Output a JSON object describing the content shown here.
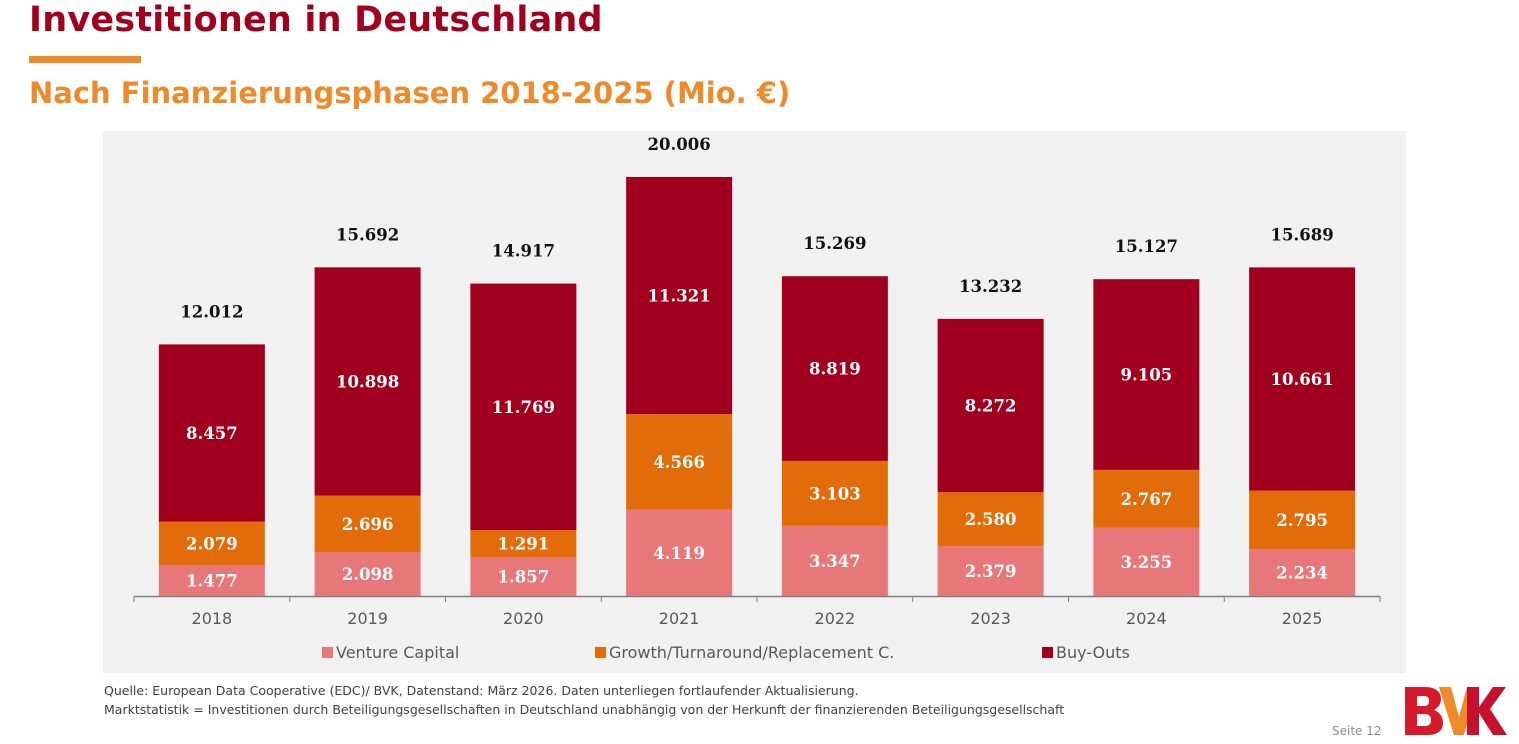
{
  "header": {
    "title": "Investitionen in Deutschland",
    "subtitle": "Nach Finanzierungsphasen 2018-2025 (Mio. €)"
  },
  "colors": {
    "title": "#a0001e",
    "accent": "#ee8a2a",
    "venture_capital": "#e8777a",
    "growth": "#e36c0a",
    "buyouts": "#a0001e",
    "panel_bg": "#f1f1f1"
  },
  "chart_data": {
    "type": "bar",
    "stacked": true,
    "title": "Nach Finanzierungsphasen 2018-2025 (Mio. €)",
    "xlabel": "",
    "ylabel": "",
    "ylim": [
      0,
      21000
    ],
    "grid": false,
    "legend_position": "bottom",
    "categories": [
      "2018",
      "2019",
      "2020",
      "2021",
      "2022",
      "2023",
      "2024",
      "2025"
    ],
    "series": [
      {
        "name": "Venture Capital",
        "values": [
          1477,
          2098,
          1857,
          4119,
          3347,
          2379,
          3255,
          2234
        ],
        "labels": [
          "1.477",
          "2.098",
          "1.857",
          "4.119",
          "3.347",
          "2.379",
          "3.255",
          "2.234"
        ],
        "color": "#e8777a"
      },
      {
        "name": "Growth/Turnaround/Replacement C.",
        "values": [
          2079,
          2696,
          1291,
          4566,
          3103,
          2580,
          2767,
          2795
        ],
        "labels": [
          "2.079",
          "2.696",
          "1.291",
          "4.566",
          "3.103",
          "2.580",
          "2.767",
          "2.795"
        ],
        "color": "#e36c0a"
      },
      {
        "name": "Buy-Outs",
        "values": [
          8457,
          10898,
          11769,
          11321,
          8819,
          8272,
          9105,
          10661
        ],
        "labels": [
          "8.457",
          "10.898",
          "11.769",
          "11.321",
          "8.819",
          "8.272",
          "9.105",
          "10.661"
        ],
        "color": "#a0001e"
      }
    ],
    "totals": [
      12012,
      15692,
      14917,
      20006,
      15269,
      13232,
      15127,
      15689
    ],
    "total_labels": [
      "12.012",
      "15.692",
      "14.917",
      "20.006",
      "15.269",
      "13.232",
      "15.127",
      "15.689"
    ]
  },
  "footer": {
    "source": "Quelle: European Data Cooperative (EDC)/ BVK, Datenstand: März 2026. Daten unterliegen fortlaufender Aktualisierung.",
    "definition": "Marktstatistik = Investitionen durch Beteiligungsgesellschaften in Deutschland unabhängig von der Herkunft der finanzierenden Beteiligungsgesellschaft",
    "page": "Seite 12",
    "logo_text": "BVK"
  }
}
